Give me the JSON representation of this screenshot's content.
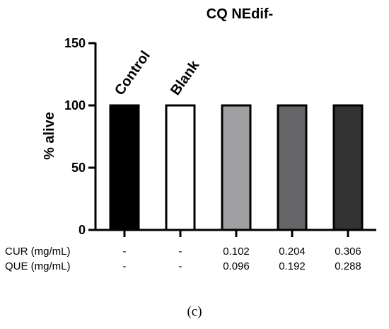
{
  "chart_data": {
    "type": "bar",
    "title": "CQ NEdif-",
    "ylabel": "% alive",
    "ylim": [
      0,
      150
    ],
    "yticks": [
      0,
      50,
      100,
      150
    ],
    "categories": [
      "Control",
      "Blank",
      "0.102 / 0.096",
      "0.204 / 0.192",
      "0.306 / 0.288"
    ],
    "values": [
      100,
      100,
      100,
      100,
      100
    ],
    "bar_labels": [
      "Control",
      "Blank",
      "",
      "",
      ""
    ],
    "bar_colors": [
      "#000000",
      "#ffffff",
      "#a0a0a3",
      "#656567",
      "#333333"
    ],
    "grid": false,
    "legend": "none",
    "table": {
      "rows": [
        {
          "label": "CUR (mg/mL)",
          "values": [
            "-",
            "-",
            "0.102",
            "0.204",
            "0.306"
          ]
        },
        {
          "label": "QUE (mg/mL)",
          "values": [
            "-",
            "-",
            "0.096",
            "0.192",
            "0.288"
          ]
        }
      ]
    }
  },
  "panel_label": "(c)"
}
